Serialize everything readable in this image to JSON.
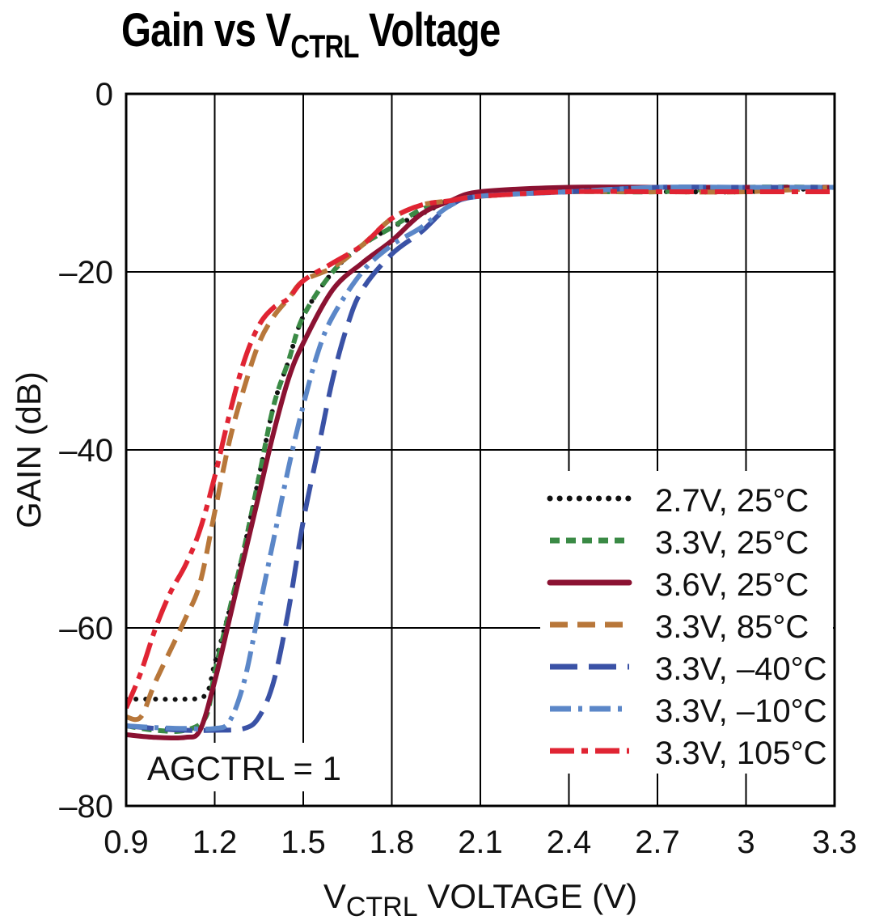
{
  "title_parts": {
    "pre": "Gain vs V",
    "sub": "CTRL",
    "post": " Voltage"
  },
  "chart_data": {
    "type": "line",
    "title": "Gain vs VCTRL Voltage",
    "xlabel_parts": {
      "pre": "V",
      "sub": "CTRL",
      "post": " VOLTAGE (V)"
    },
    "ylabel": "GAIN (dB)",
    "xlim": [
      0.9,
      3.3
    ],
    "ylim": [
      -80,
      0
    ],
    "xticks": [
      0.9,
      1.2,
      1.5,
      1.8,
      2.1,
      2.4,
      2.7,
      3.0,
      3.3
    ],
    "xtick_labels": [
      "0.9",
      "1.2",
      "1.5",
      "1.8",
      "2.1",
      "2.4",
      "2.7",
      "3",
      "3.3"
    ],
    "yticks": [
      0,
      -20,
      -40,
      -60,
      -80
    ],
    "ytick_labels": [
      "0",
      "–20",
      "–40",
      "–60",
      "–80"
    ],
    "grid": true,
    "legend_position": "bottom-right",
    "annotation": "AGCTRL = 1",
    "series": [
      {
        "name": "2.7V, 25°C",
        "color": "#111111",
        "style": "dotted",
        "points": [
          [
            0.9,
            -68
          ],
          [
            1.0,
            -68
          ],
          [
            1.1,
            -68
          ],
          [
            1.17,
            -67.5
          ],
          [
            1.2,
            -64
          ],
          [
            1.25,
            -58
          ],
          [
            1.3,
            -51
          ],
          [
            1.35,
            -43
          ],
          [
            1.4,
            -35
          ],
          [
            1.45,
            -30
          ],
          [
            1.5,
            -25
          ],
          [
            1.6,
            -20
          ],
          [
            1.7,
            -17
          ],
          [
            1.8,
            -15
          ],
          [
            1.9,
            -13.5
          ],
          [
            2.0,
            -12
          ],
          [
            2.1,
            -11.5
          ],
          [
            2.4,
            -11
          ],
          [
            2.7,
            -11
          ],
          [
            3.0,
            -11
          ],
          [
            3.3,
            -10.5
          ]
        ]
      },
      {
        "name": "3.3V, 25°C",
        "color": "#3a8a45",
        "style": "short-dash",
        "points": [
          [
            0.9,
            -71
          ],
          [
            1.0,
            -71.5
          ],
          [
            1.1,
            -71.5
          ],
          [
            1.17,
            -70
          ],
          [
            1.2,
            -65
          ],
          [
            1.25,
            -58
          ],
          [
            1.3,
            -51
          ],
          [
            1.35,
            -43
          ],
          [
            1.4,
            -35
          ],
          [
            1.45,
            -30
          ],
          [
            1.5,
            -25
          ],
          [
            1.6,
            -20
          ],
          [
            1.7,
            -17
          ],
          [
            1.8,
            -15
          ],
          [
            1.9,
            -13
          ],
          [
            2.0,
            -12
          ],
          [
            2.1,
            -11.5
          ],
          [
            2.4,
            -11
          ],
          [
            2.7,
            -11
          ],
          [
            3.0,
            -10.5
          ],
          [
            3.3,
            -10.5
          ]
        ]
      },
      {
        "name": "3.6V, 25°C",
        "color": "#8b1232",
        "style": "solid",
        "points": [
          [
            0.9,
            -72
          ],
          [
            1.0,
            -72.3
          ],
          [
            1.1,
            -72.3
          ],
          [
            1.15,
            -71.5
          ],
          [
            1.2,
            -66
          ],
          [
            1.25,
            -59
          ],
          [
            1.3,
            -52
          ],
          [
            1.35,
            -45
          ],
          [
            1.4,
            -38
          ],
          [
            1.45,
            -32
          ],
          [
            1.5,
            -28
          ],
          [
            1.6,
            -22
          ],
          [
            1.7,
            -19
          ],
          [
            1.8,
            -16.5
          ],
          [
            1.9,
            -13.5
          ],
          [
            2.0,
            -12
          ],
          [
            2.1,
            -11
          ],
          [
            2.4,
            -10.5
          ],
          [
            2.7,
            -10.5
          ],
          [
            3.0,
            -10.5
          ],
          [
            3.3,
            -10.5
          ]
        ]
      },
      {
        "name": "3.3V, 85°C",
        "color": "#b8773a",
        "style": "dash",
        "points": [
          [
            0.9,
            -70
          ],
          [
            0.95,
            -70
          ],
          [
            1.0,
            -66
          ],
          [
            1.1,
            -59
          ],
          [
            1.15,
            -55
          ],
          [
            1.2,
            -47
          ],
          [
            1.25,
            -39
          ],
          [
            1.3,
            -33
          ],
          [
            1.35,
            -28
          ],
          [
            1.4,
            -25
          ],
          [
            1.45,
            -23
          ],
          [
            1.5,
            -21
          ],
          [
            1.6,
            -19.5
          ],
          [
            1.7,
            -17
          ],
          [
            1.8,
            -14
          ],
          [
            1.9,
            -12.5
          ],
          [
            2.0,
            -12
          ],
          [
            2.1,
            -11.5
          ],
          [
            2.4,
            -11
          ],
          [
            2.7,
            -11
          ],
          [
            3.0,
            -11
          ],
          [
            3.3,
            -10.5
          ]
        ]
      },
      {
        "name": "3.3V, –40°C",
        "color": "#3a52a6",
        "style": "long-dash",
        "points": [
          [
            0.9,
            -71
          ],
          [
            1.0,
            -71.3
          ],
          [
            1.1,
            -71.5
          ],
          [
            1.2,
            -71.5
          ],
          [
            1.3,
            -71.3
          ],
          [
            1.35,
            -70
          ],
          [
            1.4,
            -66
          ],
          [
            1.45,
            -58
          ],
          [
            1.5,
            -48
          ],
          [
            1.55,
            -40
          ],
          [
            1.6,
            -32
          ],
          [
            1.65,
            -26
          ],
          [
            1.7,
            -22
          ],
          [
            1.8,
            -18
          ],
          [
            1.9,
            -15.5
          ],
          [
            2.0,
            -12.5
          ],
          [
            2.1,
            -11.5
          ],
          [
            2.4,
            -11
          ],
          [
            2.7,
            -10.5
          ],
          [
            3.0,
            -10.5
          ],
          [
            3.3,
            -10.5
          ]
        ]
      },
      {
        "name": "3.3V, –10°C",
        "color": "#5b87c8",
        "style": "dash-dot",
        "points": [
          [
            0.9,
            -71
          ],
          [
            1.0,
            -71.2
          ],
          [
            1.1,
            -71.3
          ],
          [
            1.2,
            -71.3
          ],
          [
            1.25,
            -70.5
          ],
          [
            1.3,
            -66
          ],
          [
            1.35,
            -58
          ],
          [
            1.4,
            -50
          ],
          [
            1.45,
            -42
          ],
          [
            1.5,
            -35
          ],
          [
            1.55,
            -29
          ],
          [
            1.6,
            -25
          ],
          [
            1.7,
            -20
          ],
          [
            1.8,
            -17
          ],
          [
            1.9,
            -15
          ],
          [
            2.0,
            -12.5
          ],
          [
            2.1,
            -11.5
          ],
          [
            2.4,
            -11
          ],
          [
            2.7,
            -10.5
          ],
          [
            3.0,
            -10.5
          ],
          [
            3.3,
            -10.5
          ]
        ]
      },
      {
        "name": "3.3V, 105°C",
        "color": "#e02433",
        "style": "dash-dot-long",
        "points": [
          [
            0.9,
            -69
          ],
          [
            0.95,
            -65
          ],
          [
            1.0,
            -60
          ],
          [
            1.05,
            -56
          ],
          [
            1.1,
            -53
          ],
          [
            1.15,
            -49
          ],
          [
            1.2,
            -43
          ],
          [
            1.25,
            -36
          ],
          [
            1.3,
            -30
          ],
          [
            1.35,
            -26
          ],
          [
            1.4,
            -24
          ],
          [
            1.45,
            -23
          ],
          [
            1.5,
            -21
          ],
          [
            1.6,
            -19
          ],
          [
            1.7,
            -17
          ],
          [
            1.8,
            -14
          ],
          [
            1.9,
            -12.5
          ],
          [
            2.0,
            -12
          ],
          [
            2.1,
            -11.5
          ],
          [
            2.4,
            -11
          ],
          [
            2.7,
            -11
          ],
          [
            3.0,
            -11
          ],
          [
            3.3,
            -11
          ]
        ]
      }
    ]
  }
}
